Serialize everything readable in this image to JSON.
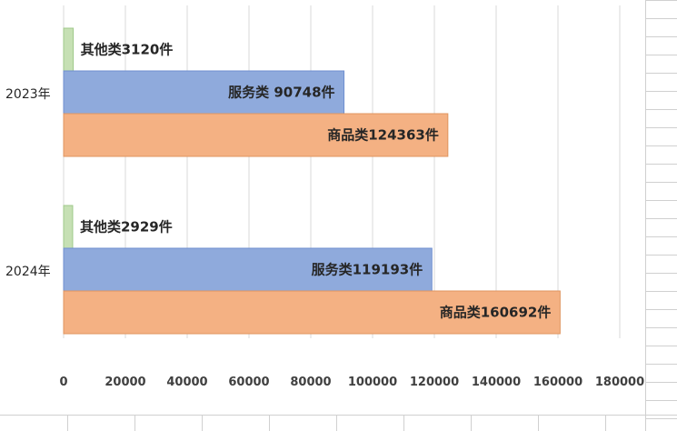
{
  "colors": {
    "gridline": "#d9d9d9",
    "sheet_grid": "#d0d0d0",
    "axis": "#bfbfbf",
    "tick_text": "#404040"
  },
  "chart_data": {
    "type": "bar",
    "orientation": "horizontal",
    "title": "",
    "xlabel": "",
    "ylabel": "",
    "xlim": [
      0,
      180000
    ],
    "x_ticks": [
      "0",
      "20000",
      "40000",
      "60000",
      "80000",
      "100000",
      "120000",
      "140000",
      "160000",
      "180000"
    ],
    "grid": true,
    "legend": "none",
    "categories": [
      "2023年",
      "2024年"
    ],
    "series": [
      {
        "key": "other",
        "color": "#c6e0b4",
        "stroke": "#9fc98a",
        "values": [
          3120,
          2929
        ],
        "data_labels": [
          "其他类3120件",
          "其他类2929件"
        ]
      },
      {
        "key": "service",
        "color": "#8faadc",
        "stroke": "#6f8fcf",
        "values": [
          90748,
          119193
        ],
        "data_labels": [
          "服务类  90748件",
          "服务类119193件"
        ]
      },
      {
        "key": "goods",
        "color": "#f4b183",
        "stroke": "#e0955f",
        "values": [
          124363,
          160692
        ],
        "data_labels": [
          "商品类124363件",
          "商品类160692件"
        ]
      }
    ]
  }
}
